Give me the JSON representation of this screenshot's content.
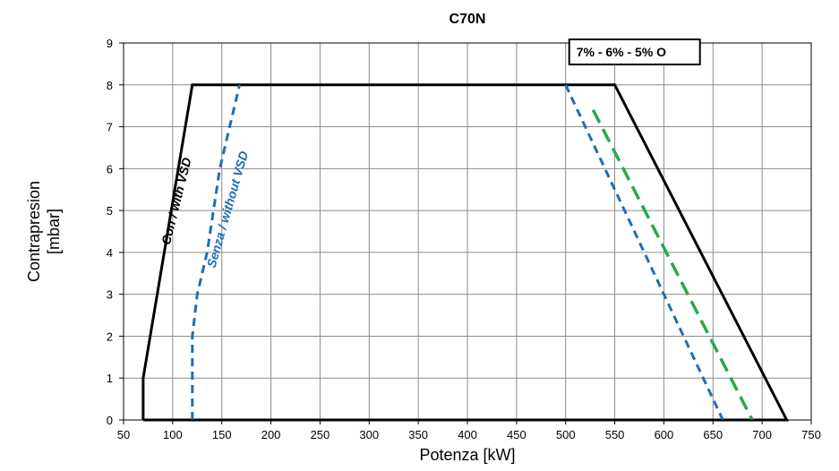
{
  "chart_data": {
    "type": "line",
    "title": "C70N",
    "xlabel": "Potenza [kW]",
    "ylabel_line1": "Contrapresion",
    "ylabel_line2": "[mbar]",
    "xlim": [
      50,
      750
    ],
    "ylim": [
      0,
      9
    ],
    "xticks": [
      50,
      100,
      150,
      200,
      250,
      300,
      350,
      400,
      450,
      500,
      550,
      600,
      650,
      700,
      750
    ],
    "yticks": [
      0,
      1,
      2,
      3,
      4,
      5,
      6,
      7,
      8,
      9
    ],
    "grid": true,
    "legend_box": "7% - 6% - 5% O",
    "series": [
      {
        "label": "Con / with VSD",
        "color": "#000000",
        "style": "solid",
        "points": [
          [
            70,
            0
          ],
          [
            70,
            1
          ],
          [
            120,
            8
          ],
          [
            550,
            8
          ],
          [
            725,
            0
          ],
          [
            70,
            0
          ]
        ]
      },
      {
        "label": "Senza / without VSD",
        "color": "#1f6db5",
        "style": "dashed",
        "points": [
          [
            120,
            0
          ],
          [
            120,
            2
          ],
          [
            125,
            3
          ],
          [
            135,
            4
          ],
          [
            148,
            6
          ],
          [
            168,
            8
          ]
        ]
      },
      {
        "label": "",
        "color": "#1f6db5",
        "style": "dashed",
        "points": [
          [
            500,
            8
          ],
          [
            660,
            0
          ]
        ]
      },
      {
        "label": "",
        "color": "#2aa84a",
        "style": "dashed-long",
        "points": [
          [
            528,
            7.4
          ],
          [
            690,
            0
          ]
        ]
      }
    ],
    "annotations": [
      {
        "text": "Con / with VSD",
        "x": 108,
        "y": 5.2,
        "angle": -76,
        "color": "#000000"
      },
      {
        "text": "Senza / without VSD",
        "x": 160,
        "y": 5.0,
        "angle": -74,
        "color": "#1f6db5"
      }
    ]
  }
}
